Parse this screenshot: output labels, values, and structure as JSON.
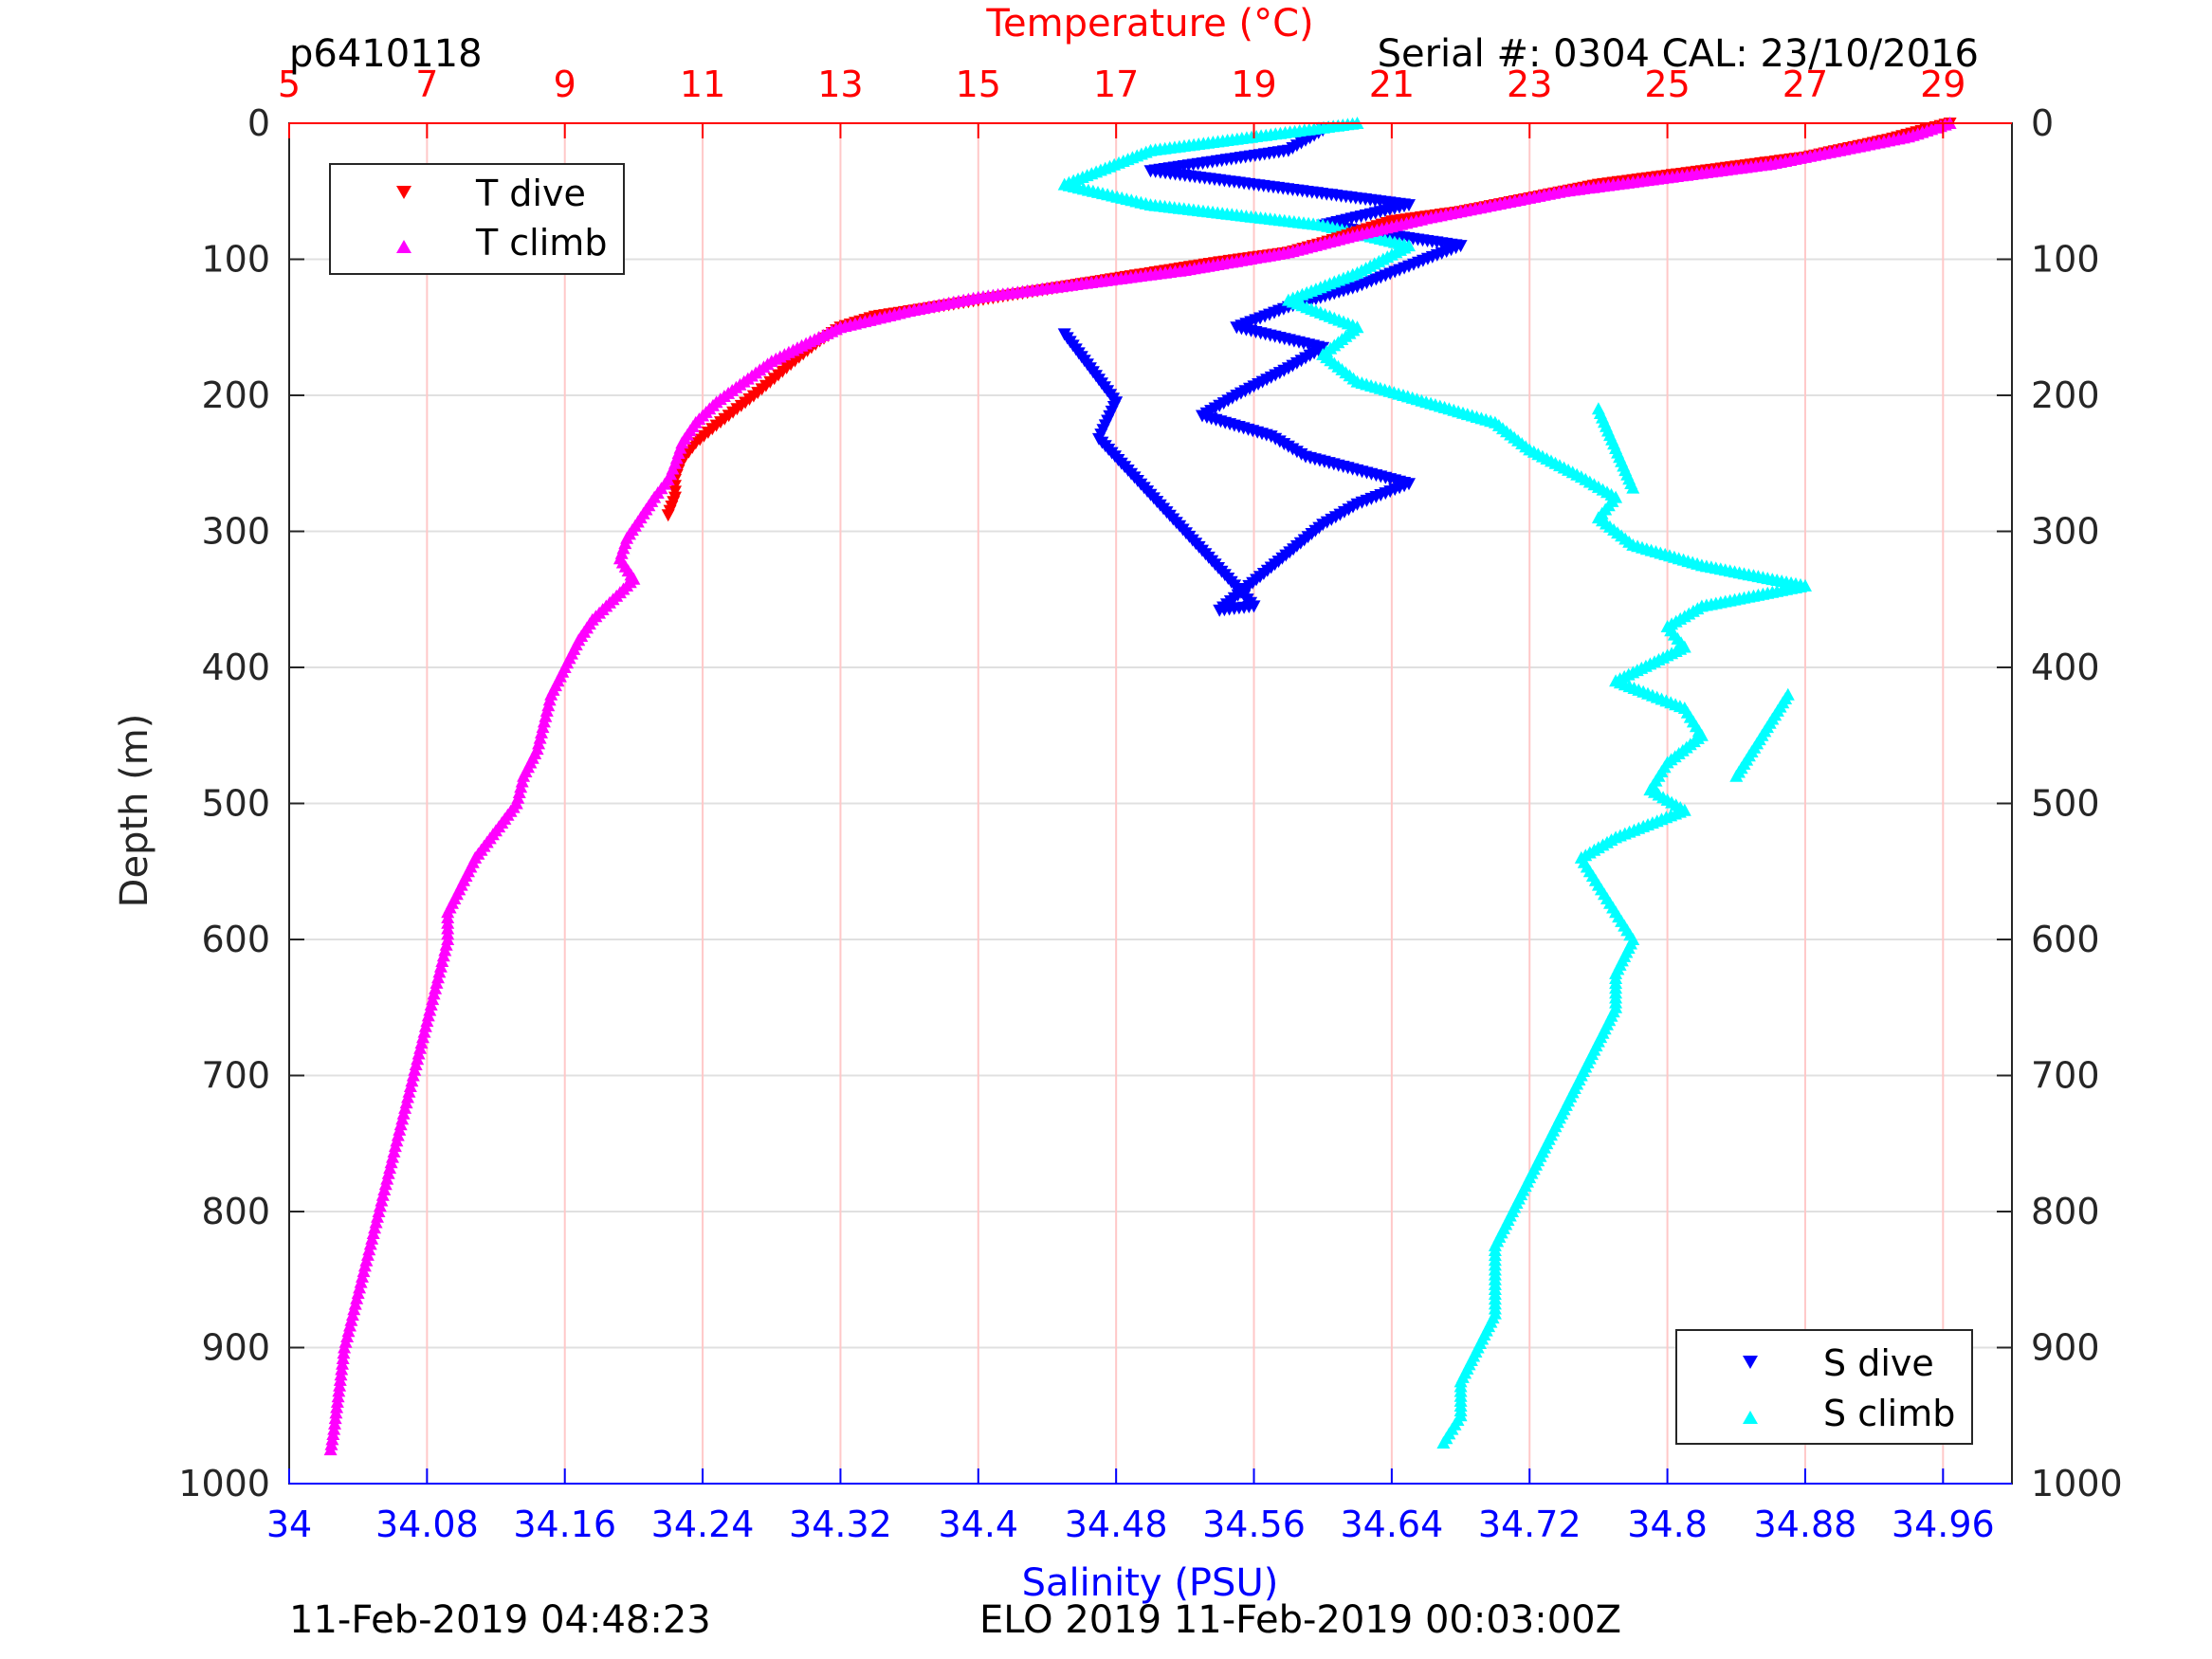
{
  "header": {
    "profile_id": "p6410118",
    "serial_cal": "Serial #: 0304  CAL: 23/10/2016"
  },
  "footer": {
    "left_timestamp": "11-Feb-2019 04:48:23",
    "center_text": "ELO 2019 11-Feb-2019 00:03:00Z"
  },
  "colors": {
    "temperature_axis": "#ff0000",
    "salinity_axis": "#0000ff",
    "t_dive": "#ff0000",
    "t_climb": "#ff00ff",
    "s_dive": "#0000ff",
    "s_climb": "#00ffff",
    "grid_horizontal": "#e0e0e0",
    "grid_vertical": "#ffc8c8"
  },
  "chart_data": {
    "type": "scatter",
    "y_axis": {
      "label": "Depth (m)",
      "range": [
        0,
        1000
      ],
      "reversed": true,
      "ticks": [
        0,
        100,
        200,
        300,
        400,
        500,
        600,
        700,
        800,
        900,
        1000
      ]
    },
    "x_axis_top": {
      "label": "Temperature (°C)",
      "range": [
        5,
        30
      ],
      "ticks": [
        5,
        7,
        9,
        11,
        13,
        15,
        17,
        19,
        21,
        23,
        25,
        27,
        29
      ]
    },
    "x_axis_bottom": {
      "label": "Salinity (PSU)",
      "range": [
        34.0,
        35.0
      ],
      "tick_labels": [
        "34",
        "34.08",
        "34.16",
        "34.24",
        "34.32",
        "34.4",
        "34.48",
        "34.56",
        "34.64",
        "34.72",
        "34.8",
        "34.88",
        "34.96"
      ]
    },
    "grid": true,
    "legends": [
      {
        "position": "top-left",
        "entries": [
          "T dive",
          "T climb"
        ]
      },
      {
        "position": "bottom-right",
        "entries": [
          "S dive",
          "S climb"
        ]
      }
    ],
    "series": [
      {
        "name": "T dive",
        "axis": "temperature",
        "marker": "triangle-down",
        "points": [
          [
            29.1,
            0
          ],
          [
            28.2,
            12
          ],
          [
            27.0,
            25
          ],
          [
            25.5,
            35
          ],
          [
            24.0,
            45
          ],
          [
            23.0,
            55
          ],
          [
            22.0,
            65
          ],
          [
            21.0,
            72
          ],
          [
            20.5,
            80
          ],
          [
            20.0,
            88
          ],
          [
            19.5,
            95
          ],
          [
            18.5,
            102
          ],
          [
            17.5,
            110
          ],
          [
            16.5,
            118
          ],
          [
            15.5,
            126
          ],
          [
            14.5,
            134
          ],
          [
            13.5,
            142
          ],
          [
            13.0,
            150
          ],
          [
            12.7,
            160
          ],
          [
            12.4,
            172
          ],
          [
            12.1,
            185
          ],
          [
            11.8,
            198
          ],
          [
            11.5,
            210
          ],
          [
            11.2,
            222
          ],
          [
            10.9,
            235
          ],
          [
            10.7,
            248
          ],
          [
            10.6,
            262
          ],
          [
            10.6,
            275
          ],
          [
            10.5,
            288
          ]
        ]
      },
      {
        "name": "T climb",
        "axis": "temperature",
        "marker": "triangle-up",
        "points": [
          [
            29.1,
            0
          ],
          [
            28.5,
            10
          ],
          [
            27.5,
            20
          ],
          [
            26.5,
            30
          ],
          [
            25.0,
            40
          ],
          [
            23.5,
            50
          ],
          [
            22.5,
            60
          ],
          [
            21.5,
            70
          ],
          [
            20.5,
            82
          ],
          [
            19.5,
            95
          ],
          [
            18.0,
            108
          ],
          [
            16.5,
            118
          ],
          [
            15.0,
            128
          ],
          [
            14.0,
            138
          ],
          [
            13.0,
            150
          ],
          [
            12.5,
            162
          ],
          [
            12.0,
            175
          ],
          [
            11.6,
            190
          ],
          [
            11.2,
            205
          ],
          [
            10.9,
            220
          ],
          [
            10.7,
            235
          ],
          [
            10.6,
            250
          ],
          [
            10.5,
            262
          ],
          [
            10.3,
            275
          ],
          [
            10.1,
            290
          ],
          [
            9.9,
            305
          ],
          [
            9.8,
            320
          ],
          [
            10.0,
            335
          ],
          [
            9.7,
            350
          ],
          [
            9.4,
            365
          ],
          [
            9.2,
            380
          ],
          [
            9.0,
            400
          ],
          [
            8.8,
            420
          ],
          [
            8.7,
            440
          ],
          [
            8.6,
            460
          ],
          [
            8.4,
            480
          ],
          [
            8.3,
            500
          ],
          [
            8.0,
            520
          ],
          [
            7.7,
            540
          ],
          [
            7.5,
            560
          ],
          [
            7.3,
            580
          ],
          [
            7.3,
            600
          ],
          [
            7.2,
            620
          ],
          [
            7.1,
            640
          ],
          [
            7.0,
            660
          ],
          [
            6.9,
            680
          ],
          [
            6.8,
            700
          ],
          [
            6.7,
            720
          ],
          [
            6.6,
            740
          ],
          [
            6.5,
            760
          ],
          [
            6.4,
            780
          ],
          [
            6.3,
            800
          ],
          [
            6.2,
            820
          ],
          [
            6.1,
            840
          ],
          [
            6.0,
            860
          ],
          [
            5.9,
            880
          ],
          [
            5.8,
            900
          ],
          [
            5.75,
            920
          ],
          [
            5.7,
            940
          ],
          [
            5.65,
            960
          ],
          [
            5.6,
            975
          ]
        ]
      },
      {
        "name": "S dive",
        "axis": "salinity",
        "marker": "triangle-down",
        "points": [
          [
            34.6,
            5
          ],
          [
            34.58,
            20
          ],
          [
            34.5,
            35
          ],
          [
            34.56,
            45
          ],
          [
            34.65,
            60
          ],
          [
            34.6,
            75
          ],
          [
            34.68,
            90
          ],
          [
            34.65,
            105
          ],
          [
            34.62,
            120
          ],
          [
            34.58,
            135
          ],
          [
            34.55,
            150
          ],
          [
            34.6,
            165
          ],
          [
            34.58,
            180
          ],
          [
            34.55,
            200
          ],
          [
            34.53,
            215
          ],
          [
            34.57,
            230
          ],
          [
            34.59,
            245
          ],
          [
            34.65,
            265
          ],
          [
            34.62,
            280
          ],
          [
            34.6,
            295
          ],
          [
            34.54,
            358
          ],
          [
            34.56,
            355
          ],
          [
            34.47,
            232
          ],
          [
            34.48,
            205
          ],
          [
            34.45,
            155
          ]
        ]
      },
      {
        "name": "S climb",
        "axis": "salinity",
        "marker": "triangle-up",
        "points": [
          [
            34.62,
            0
          ],
          [
            34.5,
            20
          ],
          [
            34.45,
            45
          ],
          [
            34.5,
            60
          ],
          [
            34.6,
            75
          ],
          [
            34.65,
            90
          ],
          [
            34.62,
            110
          ],
          [
            34.58,
            130
          ],
          [
            34.62,
            150
          ],
          [
            34.6,
            170
          ],
          [
            34.62,
            190
          ],
          [
            34.66,
            205
          ],
          [
            34.7,
            220
          ],
          [
            34.72,
            240
          ],
          [
            34.75,
            260
          ],
          [
            34.77,
            275
          ],
          [
            34.76,
            290
          ],
          [
            34.78,
            310
          ],
          [
            34.82,
            325
          ],
          [
            34.88,
            340
          ],
          [
            34.82,
            355
          ],
          [
            34.8,
            370
          ],
          [
            34.81,
            385
          ],
          [
            34.77,
            410
          ],
          [
            34.81,
            430
          ],
          [
            34.82,
            450
          ],
          [
            34.8,
            470
          ],
          [
            34.79,
            490
          ],
          [
            34.81,
            505
          ],
          [
            34.77,
            525
          ],
          [
            34.75,
            540
          ],
          [
            34.76,
            560
          ],
          [
            34.77,
            580
          ],
          [
            34.78,
            600
          ],
          [
            34.77,
            625
          ],
          [
            34.77,
            650
          ],
          [
            34.76,
            675
          ],
          [
            34.75,
            700
          ],
          [
            34.74,
            725
          ],
          [
            34.73,
            750
          ],
          [
            34.72,
            775
          ],
          [
            34.71,
            800
          ],
          [
            34.7,
            825
          ],
          [
            34.7,
            850
          ],
          [
            34.7,
            875
          ],
          [
            34.69,
            900
          ],
          [
            34.68,
            925
          ],
          [
            34.68,
            950
          ],
          [
            34.67,
            970
          ],
          [
            34.87,
            420
          ],
          [
            34.84,
            480
          ],
          [
            34.78,
            268
          ],
          [
            34.76,
            210
          ]
        ]
      }
    ]
  }
}
